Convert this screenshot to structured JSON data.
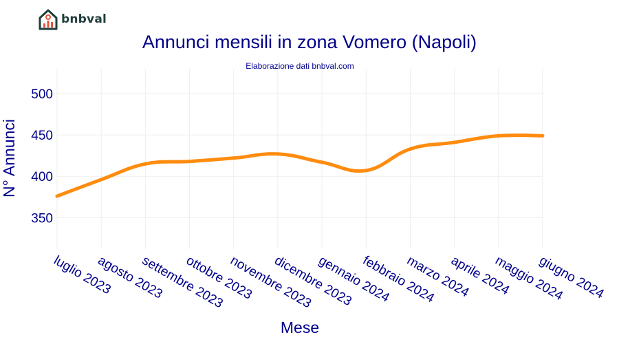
{
  "brand": {
    "name": "bnbval",
    "logo_icon": "house-chart-icon",
    "primary_color": "#1f3d3a",
    "accent_color": "#e8553c"
  },
  "chart_data": {
    "type": "line",
    "title": "Annunci mensili in zona Vomero (Napoli)",
    "subtitle": "Elaborazione dati bnbval.com",
    "xlabel": "Mese",
    "ylabel": "N° Annunci",
    "categories": [
      "luglio 2023",
      "agosto 2023",
      "settembre 2023",
      "ottobre 2023",
      "novembre 2023",
      "dicembre 2023",
      "gennaio 2024",
      "febbraio 2024",
      "marzo 2024",
      "aprile 2024",
      "maggio 2024",
      "giugno 2024"
    ],
    "series": [
      {
        "values": [
          376,
          396,
          415,
          418,
          422,
          427,
          417,
          407,
          433,
          441,
          449,
          449
        ],
        "color": "#ff8c0f"
      }
    ],
    "yticks": [
      350,
      400,
      450,
      500
    ],
    "ylim": [
      312,
      530
    ],
    "grid": true,
    "title_color": "#00008b"
  }
}
